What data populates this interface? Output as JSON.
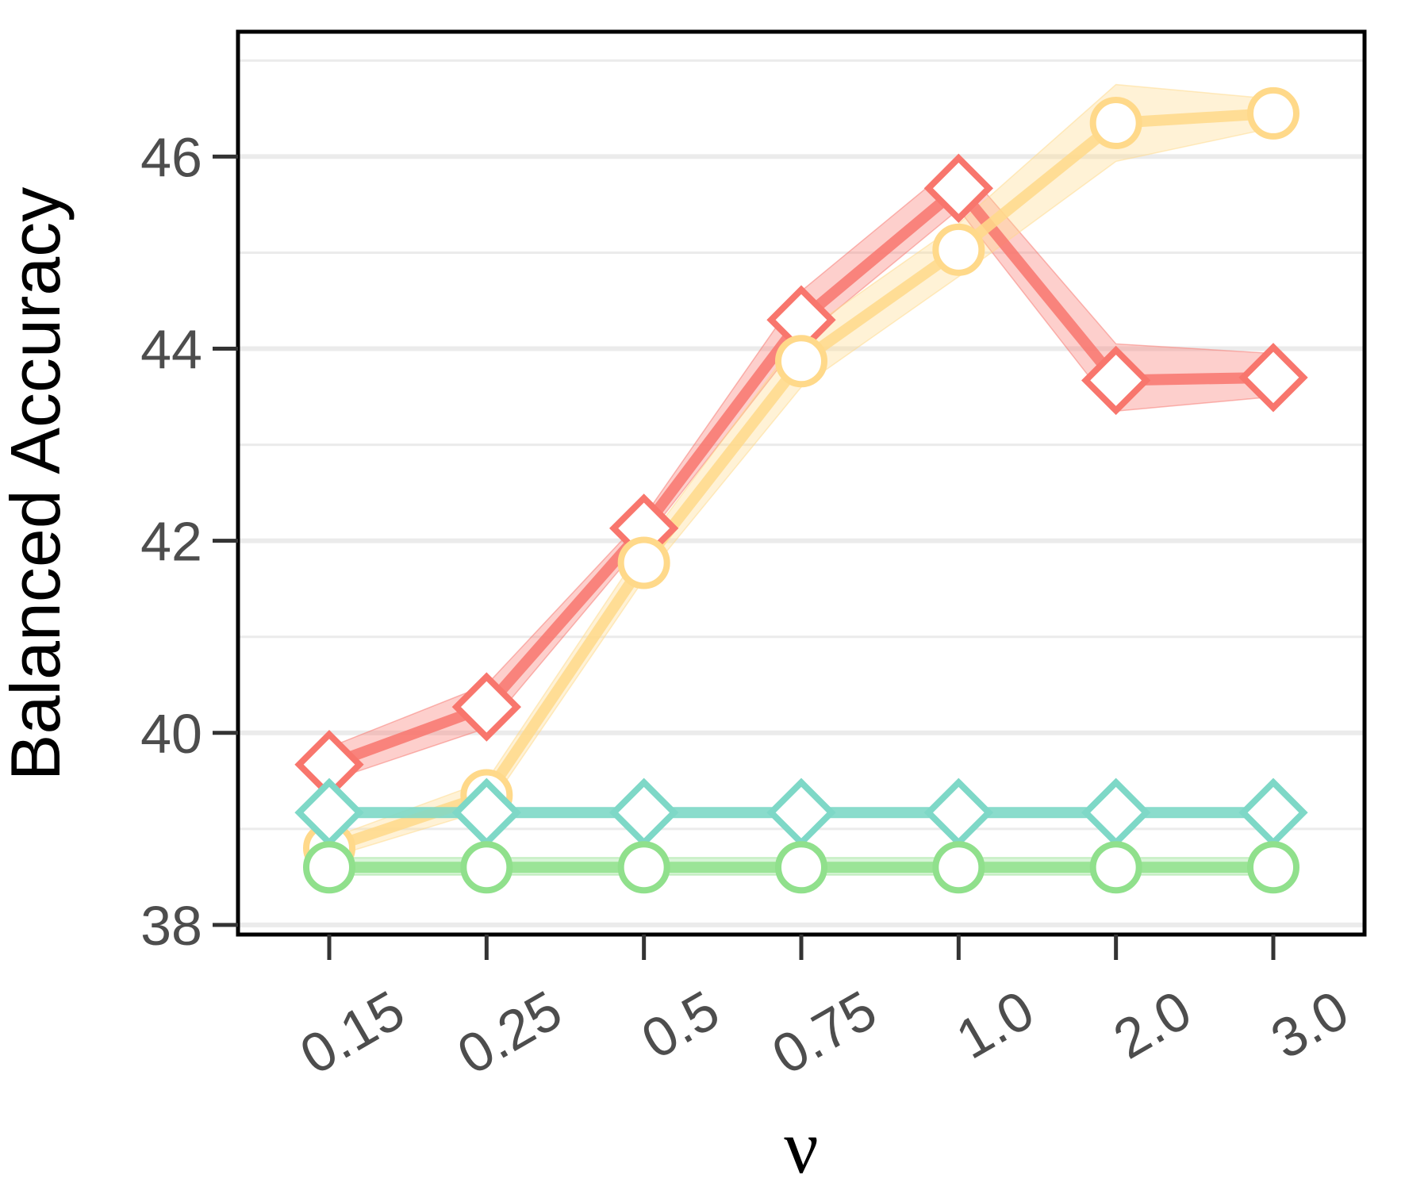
{
  "chart_data": {
    "type": "line",
    "title": "",
    "xlabel": "ν",
    "ylabel": "Balanced Accuracy",
    "categories": [
      "0.15",
      "0.25",
      "0.5",
      "0.75",
      "1.0",
      "2.0",
      "3.0"
    ],
    "ylim": [
      37.9,
      47.3
    ],
    "yticks": [
      38,
      40,
      42,
      44,
      46
    ],
    "grid": "horizontal",
    "legend": "none",
    "series": [
      {
        "marker": "diamond",
        "color": "#F8766D",
        "values": [
          39.67,
          40.27,
          42.13,
          44.3,
          45.67,
          43.67,
          43.7
        ],
        "lower": [
          39.5,
          40.05,
          42.0,
          44.1,
          45.45,
          43.35,
          43.5
        ],
        "upper": [
          39.85,
          40.5,
          42.25,
          44.6,
          45.95,
          44.05,
          43.95
        ]
      },
      {
        "marker": "circle",
        "color": "#FFD98A",
        "values": [
          38.8,
          39.35,
          41.77,
          43.87,
          45.03,
          46.35,
          46.45
        ],
        "lower": [
          38.7,
          39.2,
          41.6,
          43.6,
          44.75,
          45.95,
          46.3
        ],
        "upper": [
          38.9,
          39.5,
          41.95,
          44.15,
          45.3,
          46.75,
          46.6
        ]
      },
      {
        "marker": "diamond",
        "color": "#7ED8C7",
        "values": [
          39.17,
          39.17,
          39.17,
          39.17,
          39.17,
          39.17,
          39.17
        ],
        "lower": [
          39.12,
          39.12,
          39.12,
          39.12,
          39.12,
          39.12,
          39.12
        ],
        "upper": [
          39.22,
          39.22,
          39.22,
          39.22,
          39.22,
          39.22,
          39.22
        ]
      },
      {
        "marker": "circle",
        "color": "#90E08C",
        "values": [
          38.6,
          38.6,
          38.6,
          38.6,
          38.6,
          38.6,
          38.6
        ],
        "lower": [
          38.52,
          38.52,
          38.52,
          38.52,
          38.52,
          38.52,
          38.52
        ],
        "upper": [
          38.7,
          38.7,
          38.7,
          38.7,
          38.7,
          38.7,
          38.7
        ]
      }
    ]
  }
}
